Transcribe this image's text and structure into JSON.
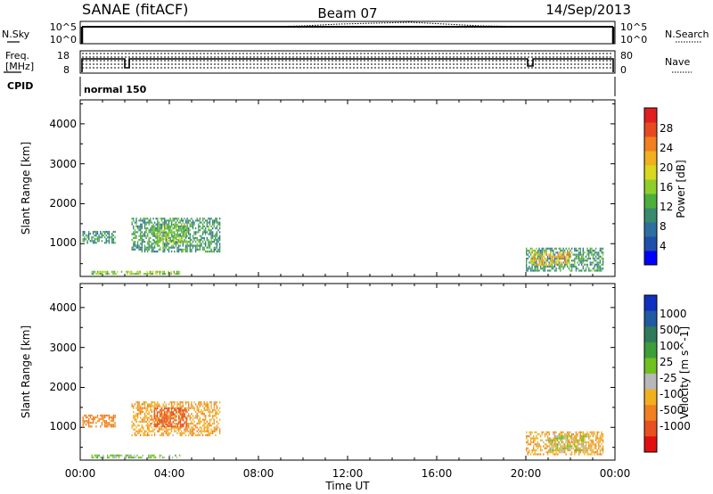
{
  "header": {
    "station": "SANAE (fitACF)",
    "beam": "Beam 07",
    "date": "14/Sep/2013"
  },
  "noise_panel": {
    "left_label": "N.Sky",
    "right_label": "N.Search",
    "left_ticks": [
      "10^5",
      "10^0"
    ],
    "right_ticks": [
      "10^5",
      "10^0"
    ]
  },
  "freq_panel": {
    "left_label_1": "Freq.",
    "left_label_2": "[MHz]",
    "right_label": "Nave",
    "left_ticks": [
      "18",
      "8"
    ],
    "right_ticks": [
      "80",
      "0"
    ]
  },
  "cpid": {
    "label": "CPID",
    "mode": "normal 150"
  },
  "x_axis": {
    "title": "Time UT",
    "ticks": [
      "00:00",
      "04:00",
      "08:00",
      "12:00",
      "16:00",
      "20:00",
      "00:00"
    ]
  },
  "colors": {
    "power_scale": [
      "#0000ff",
      "#1f4fa8",
      "#2e6fa0",
      "#3a8a6e",
      "#4caf3c",
      "#8fce2a",
      "#d8d820",
      "#f0b020",
      "#f08020",
      "#e84a20",
      "#e02020"
    ],
    "velocity_scale": [
      "#1030c0",
      "#205aa0",
      "#2f7a5a",
      "#3d9e3a",
      "#70c020",
      "#b8b8b8",
      "#f0b020",
      "#f08020",
      "#e85020",
      "#e01010"
    ]
  },
  "chart_data": [
    {
      "type": "heatmap",
      "title": "",
      "ylabel": "Slant Range [km]",
      "xlabel": "",
      "x_range_hours": [
        0,
        24
      ],
      "ylim": [
        180,
        4600
      ],
      "yticks": [
        "1000",
        "2000",
        "3000",
        "4000"
      ],
      "colorbar": {
        "label": "Power [dB]",
        "ticks": [
          "4",
          "8",
          "12",
          "16",
          "20",
          "24",
          "28"
        ],
        "range": [
          0,
          32
        ]
      },
      "clusters": [
        {
          "t_start_h": 0.1,
          "t_end_h": 1.6,
          "r_start_km": 1000,
          "r_end_km": 1320,
          "value": 10
        },
        {
          "t_start_h": 2.3,
          "t_end_h": 6.3,
          "r_start_km": 780,
          "r_end_km": 1650,
          "value": 11
        },
        {
          "t_start_h": 3.3,
          "t_end_h": 4.8,
          "r_start_km": 1000,
          "r_end_km": 1500,
          "value": 15
        },
        {
          "t_start_h": 0.5,
          "t_end_h": 4.5,
          "r_start_km": 220,
          "r_end_km": 320,
          "value": 15
        },
        {
          "t_start_h": 20.0,
          "t_end_h": 23.5,
          "r_start_km": 300,
          "r_end_km": 900,
          "value": 11
        },
        {
          "t_start_h": 20.2,
          "t_end_h": 22.0,
          "r_start_km": 450,
          "r_end_km": 800,
          "value": 22
        }
      ]
    },
    {
      "type": "heatmap",
      "title": "",
      "ylabel": "Slant Range [km]",
      "xlabel": "Time UT",
      "x_range_hours": [
        0,
        24
      ],
      "ylim": [
        180,
        4600
      ],
      "yticks": [
        "1000",
        "2000",
        "3000",
        "4000"
      ],
      "colorbar": {
        "label": "Velocity [m s^-1]",
        "ticks": [
          "1000",
          "500",
          "100",
          "25",
          "-25",
          "-100",
          "-500",
          "-1000"
        ]
      },
      "clusters": [
        {
          "t_start_h": 0.1,
          "t_end_h": 1.6,
          "r_start_km": 1000,
          "r_end_km": 1320,
          "value": -150
        },
        {
          "t_start_h": 2.3,
          "t_end_h": 6.3,
          "r_start_km": 780,
          "r_end_km": 1650,
          "value": -80
        },
        {
          "t_start_h": 3.3,
          "t_end_h": 4.8,
          "r_start_km": 1000,
          "r_end_km": 1500,
          "value": -300
        },
        {
          "t_start_h": 0.5,
          "t_end_h": 4.5,
          "r_start_km": 220,
          "r_end_km": 320,
          "value": 60
        },
        {
          "t_start_h": 20.0,
          "t_end_h": 23.5,
          "r_start_km": 300,
          "r_end_km": 900,
          "value": -80
        },
        {
          "t_start_h": 21.0,
          "t_end_h": 22.8,
          "r_start_km": 400,
          "r_end_km": 800,
          "value": 0
        }
      ]
    }
  ]
}
